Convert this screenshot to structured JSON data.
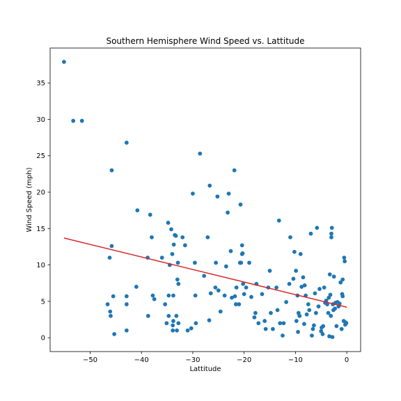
{
  "chart_data": {
    "type": "scatter",
    "title": "Southern Hemisphere Wind Speed vs. Lattitude",
    "xlabel": "Lattitude",
    "ylabel": "Wind Speed (mph)",
    "xlim": [
      -57.8,
      2.7
    ],
    "ylim": [
      -1.9,
      39.8
    ],
    "xticks": [
      -50,
      -40,
      -30,
      -20,
      -10,
      0
    ],
    "yticks": [
      0,
      5,
      10,
      15,
      20,
      25,
      30,
      35
    ],
    "grid": false,
    "legend": "none",
    "colors": {
      "points": "#1f77b4",
      "regression": "#d62728"
    },
    "regression": {
      "x": [
        -55.1,
        0
      ],
      "y": [
        13.7,
        4.2
      ]
    },
    "points": [
      [
        -55.1,
        37.9
      ],
      [
        -53.3,
        29.8
      ],
      [
        -51.6,
        29.8
      ],
      [
        -46.6,
        4.6
      ],
      [
        -46.2,
        11.0
      ],
      [
        -46.1,
        3.6
      ],
      [
        -46.0,
        3.0
      ],
      [
        -45.8,
        12.6
      ],
      [
        -45.8,
        23.0
      ],
      [
        -45.5,
        5.7
      ],
      [
        -45.3,
        0.5
      ],
      [
        -42.9,
        26.8
      ],
      [
        -42.9,
        5.7
      ],
      [
        -42.9,
        4.6
      ],
      [
        -42.9,
        1.0
      ],
      [
        -41.0,
        7.0
      ],
      [
        -40.8,
        17.5
      ],
      [
        -38.8,
        11.0
      ],
      [
        -38.7,
        3.0
      ],
      [
        -38.3,
        16.9
      ],
      [
        -38.0,
        13.8
      ],
      [
        -37.8,
        5.8
      ],
      [
        -37.5,
        5.3
      ],
      [
        -36.0,
        11.0
      ],
      [
        -35.4,
        4.6
      ],
      [
        -35.1,
        2.0
      ],
      [
        -34.8,
        15.8
      ],
      [
        -34.7,
        5.8
      ],
      [
        -34.7,
        3.0
      ],
      [
        -34.5,
        10.0
      ],
      [
        -34.2,
        14.9
      ],
      [
        -34.0,
        11.5
      ],
      [
        -33.9,
        1.7
      ],
      [
        -33.9,
        1.0
      ],
      [
        -33.8,
        2.3
      ],
      [
        -33.8,
        5.8
      ],
      [
        -33.7,
        12.8
      ],
      [
        -33.5,
        14.1
      ],
      [
        -33.3,
        14.0
      ],
      [
        -33.2,
        3.0
      ],
      [
        -33.1,
        1.0
      ],
      [
        -33.0,
        8.0
      ],
      [
        -32.9,
        10.3
      ],
      [
        -32.8,
        7.4
      ],
      [
        -32.8,
        2.0
      ],
      [
        -32.0,
        13.8
      ],
      [
        -31.5,
        12.7
      ],
      [
        -31.0,
        1.0
      ],
      [
        -30.3,
        1.3
      ],
      [
        -30.0,
        19.8
      ],
      [
        -29.6,
        10.3
      ],
      [
        -29.5,
        5.8
      ],
      [
        -29.4,
        2.0
      ],
      [
        -28.6,
        25.3
      ],
      [
        -27.8,
        8.5
      ],
      [
        -27.1,
        13.8
      ],
      [
        -26.8,
        2.4
      ],
      [
        -26.7,
        20.9
      ],
      [
        -26.5,
        6.1
      ],
      [
        -25.6,
        6.9
      ],
      [
        -25.5,
        10.3
      ],
      [
        -25.2,
        19.4
      ],
      [
        -25.0,
        6.5
      ],
      [
        -24.6,
        3.6
      ],
      [
        -23.8,
        5.8
      ],
      [
        -23.5,
        9.8
      ],
      [
        -23.2,
        17.2
      ],
      [
        -23.0,
        19.8
      ],
      [
        -22.6,
        11.9
      ],
      [
        -22.4,
        5.5
      ],
      [
        -21.9,
        23.0
      ],
      [
        -21.8,
        5.7
      ],
      [
        -21.6,
        4.6
      ],
      [
        -21.5,
        6.9
      ],
      [
        -21.0,
        4.6
      ],
      [
        -20.8,
        10.3
      ],
      [
        -20.7,
        18.3
      ],
      [
        -20.6,
        10.3
      ],
      [
        -20.4,
        11.5
      ],
      [
        -20.4,
        12.7
      ],
      [
        -20.3,
        11.6
      ],
      [
        -20.2,
        7.4
      ],
      [
        -20.0,
        6.0
      ],
      [
        -19.6,
        6.9
      ],
      [
        -19.0,
        10.3
      ],
      [
        -18.6,
        5.6
      ],
      [
        -18.0,
        2.8
      ],
      [
        -17.8,
        3.4
      ],
      [
        -17.6,
        7.4
      ],
      [
        -17.2,
        2.0
      ],
      [
        -16.5,
        6.0
      ],
      [
        -16.0,
        2.3
      ],
      [
        -15.8,
        1.2
      ],
      [
        -15.3,
        6.9
      ],
      [
        -15.0,
        9.2
      ],
      [
        -14.8,
        3.4
      ],
      [
        -14.4,
        1.2
      ],
      [
        -13.7,
        6.9
      ],
      [
        -13.5,
        3.8
      ],
      [
        -13.2,
        16.1
      ],
      [
        -13.0,
        2.0
      ],
      [
        -12.5,
        0.3
      ],
      [
        -12.3,
        2.0
      ],
      [
        -11.8,
        4.9
      ],
      [
        -11.2,
        7.4
      ],
      [
        -11.0,
        13.8
      ],
      [
        -10.4,
        8.1
      ],
      [
        -10.2,
        11.8
      ],
      [
        -9.9,
        9.2
      ],
      [
        -9.8,
        2.3
      ],
      [
        -9.6,
        5.8
      ],
      [
        -9.5,
        0.8
      ],
      [
        -9.4,
        3.4
      ],
      [
        -9.2,
        3.0
      ],
      [
        -9.0,
        11.5
      ],
      [
        -8.8,
        7.0
      ],
      [
        -8.5,
        8.3
      ],
      [
        -8.3,
        1.9
      ],
      [
        -8.2,
        7.2
      ],
      [
        -8.0,
        5.8
      ],
      [
        -7.8,
        3.2
      ],
      [
        -7.5,
        4.6
      ],
      [
        -7.3,
        3.8
      ],
      [
        -7.0,
        14.3
      ],
      [
        -6.8,
        0.3
      ],
      [
        -6.6,
        1.2
      ],
      [
        -6.4,
        1.7
      ],
      [
        -6.2,
        6.1
      ],
      [
        -6.0,
        3.4
      ],
      [
        -5.8,
        15.1
      ],
      [
        -5.5,
        4.3
      ],
      [
        -5.3,
        6.7
      ],
      [
        -5.0,
        0.9
      ],
      [
        -4.9,
        1.4
      ],
      [
        -4.7,
        0.5
      ],
      [
        -4.6,
        1.6
      ],
      [
        -4.4,
        6.9
      ],
      [
        -4.2,
        4.8
      ],
      [
        -4.0,
        5.1
      ],
      [
        -3.8,
        4.6
      ],
      [
        -3.6,
        3.4
      ],
      [
        -3.5,
        5.5
      ],
      [
        -3.4,
        0.2
      ],
      [
        -3.3,
        8.7
      ],
      [
        -3.2,
        5.9
      ],
      [
        -3.1,
        3.0
      ],
      [
        -3.0,
        13.8
      ],
      [
        -3.0,
        14.3
      ],
      [
        -2.9,
        15.1
      ],
      [
        -2.8,
        0.1
      ],
      [
        -2.7,
        4.6
      ],
      [
        -2.6,
        3.8
      ],
      [
        -2.5,
        8.4
      ],
      [
        -2.3,
        4.0
      ],
      [
        -2.2,
        4.8
      ],
      [
        -2.0,
        1.6
      ],
      [
        -1.8,
        4.9
      ],
      [
        -1.6,
        4.3
      ],
      [
        -1.4,
        4.7
      ],
      [
        -1.2,
        7.6
      ],
      [
        -1.0,
        1.2
      ],
      [
        -0.9,
        6.0
      ],
      [
        -0.8,
        5.7
      ],
      [
        -0.8,
        8.0
      ],
      [
        -0.6,
        2.3
      ],
      [
        -0.5,
        11.0
      ],
      [
        -0.4,
        10.5
      ],
      [
        -0.3,
        1.8
      ],
      [
        -0.2,
        2.1
      ],
      [
        -0.1,
        2.0
      ]
    ]
  }
}
